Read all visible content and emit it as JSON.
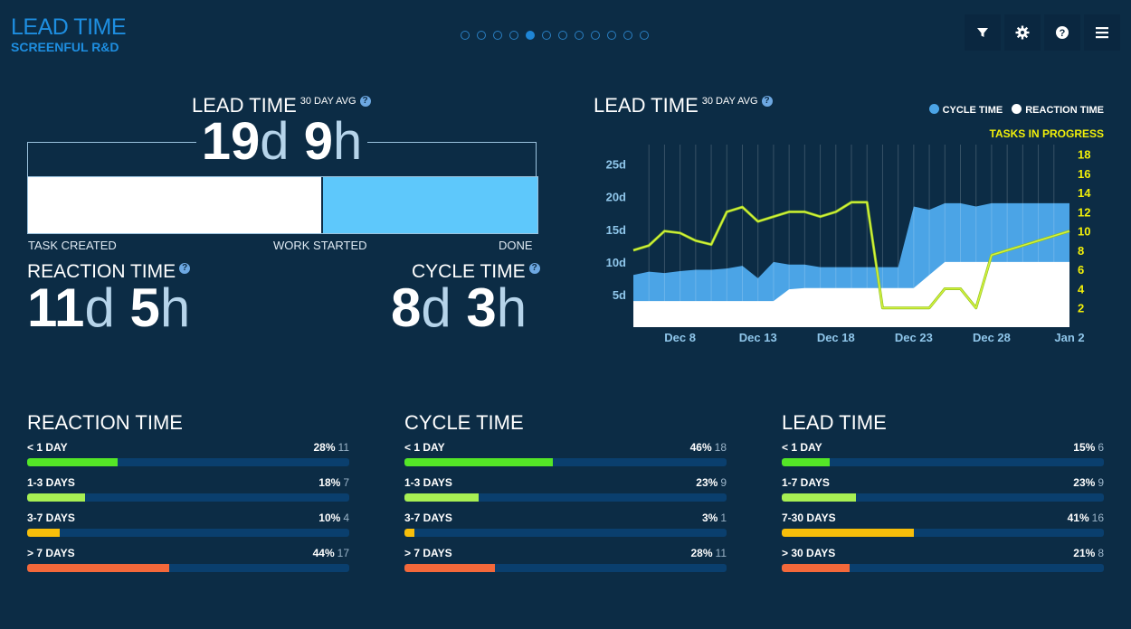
{
  "app": {
    "title": "LEAD TIME",
    "subtitle": "SCREENFUL R&D"
  },
  "pager": {
    "count": 12,
    "active_index": 4
  },
  "toolbar": {
    "icons": [
      "filter-icon",
      "gear-icon",
      "help-icon",
      "menu-icon"
    ]
  },
  "summary": {
    "title": "LEAD TIME",
    "avg_label": "30 DAY AVG",
    "lead": {
      "days": "19",
      "d": "d",
      "hours": "9",
      "h": "h"
    },
    "stage_labels": {
      "created": "TASK CREATED",
      "started": "WORK STARTED",
      "done": "DONE"
    },
    "reaction_fraction": 0.578,
    "reaction": {
      "title": "REACTION TIME",
      "days": "11",
      "d": "d",
      "hours": "5",
      "h": "h"
    },
    "cycle": {
      "title": "CYCLE TIME",
      "days": "8",
      "d": "d",
      "hours": "3",
      "h": "h"
    }
  },
  "trend": {
    "title": "LEAD TIME",
    "avg_label": "30 DAY AVG",
    "legend": {
      "cycle": "CYCLE TIME",
      "reaction": "REACTION TIME",
      "tip": "TASKS IN PROGRESS"
    },
    "colors": {
      "cycle": "#4ba4e6",
      "reaction": "#ffffff",
      "tip": "#d4f23b",
      "tip_label": "#f1ef0a"
    }
  },
  "chart_data": {
    "type": "area",
    "x": [
      "Dec 5",
      "Dec 6",
      "Dec 7",
      "Dec 8",
      "Dec 9",
      "Dec 10",
      "Dec 11",
      "Dec 12",
      "Dec 13",
      "Dec 14",
      "Dec 15",
      "Dec 16",
      "Dec 17",
      "Dec 18",
      "Dec 19",
      "Dec 20",
      "Dec 21",
      "Dec 22",
      "Dec 23",
      "Dec 24",
      "Dec 25",
      "Dec 26",
      "Dec 27",
      "Dec 28",
      "Dec 29",
      "Dec 30",
      "Dec 31",
      "Jan 1",
      "Jan 2"
    ],
    "x_tick_labels": [
      "Dec 8",
      "Dec 13",
      "Dec 18",
      "Dec 23",
      "Dec 28",
      "Jan 2"
    ],
    "y_left_ticks": [
      "5d",
      "10d",
      "15d",
      "20d",
      "25d"
    ],
    "y_left_range": [
      0,
      28
    ],
    "y_right_ticks": [
      "2",
      "4",
      "6",
      "8",
      "10",
      "12",
      "14",
      "16",
      "18"
    ],
    "y_right_range": [
      0,
      19
    ],
    "series": [
      {
        "name": "REACTION TIME",
        "values": [
          4,
          4,
          4,
          4,
          4,
          4,
          4,
          4,
          4,
          4,
          5.8,
          6,
          6,
          6,
          6,
          6,
          6,
          6,
          6,
          8,
          10,
          10,
          10,
          10,
          10,
          10,
          10,
          10,
          10
        ]
      },
      {
        "name": "CYCLE TIME",
        "values": [
          4,
          4.5,
          4.3,
          4.6,
          4.8,
          4.8,
          5,
          5.4,
          3.5,
          6,
          3.8,
          3.6,
          3.2,
          3.2,
          3.2,
          3.2,
          3.2,
          3.2,
          12.5,
          10,
          9,
          9,
          8.5,
          9,
          9,
          9,
          9,
          9,
          9
        ]
      },
      {
        "name": "TASKS IN PROGRESS",
        "axis": "right",
        "values": [
          8,
          8.5,
          10,
          9.8,
          9,
          8.6,
          12,
          12.5,
          11,
          11.5,
          12,
          12,
          11.5,
          12,
          13,
          13,
          2,
          2,
          2,
          2,
          4,
          4,
          2,
          7.5,
          8,
          8.5,
          9,
          9.5,
          10
        ]
      }
    ]
  },
  "distributions": [
    {
      "title": "REACTION TIME",
      "rows": [
        {
          "label": "< 1 DAY",
          "pct": "28%",
          "count": "11",
          "color": "#54e627"
        },
        {
          "label": "1-3 DAYS",
          "pct": "18%",
          "count": "7",
          "color": "#a7ef53"
        },
        {
          "label": "3-7 DAYS",
          "pct": "10%",
          "count": "4",
          "color": "#f7be0a"
        },
        {
          "label": "> 7 DAYS",
          "pct": "44%",
          "count": "17",
          "color": "#f3683a"
        }
      ]
    },
    {
      "title": "CYCLE TIME",
      "rows": [
        {
          "label": "< 1 DAY",
          "pct": "46%",
          "count": "18",
          "color": "#54e627"
        },
        {
          "label": "1-3 DAYS",
          "pct": "23%",
          "count": "9",
          "color": "#a7ef53"
        },
        {
          "label": "3-7 DAYS",
          "pct": "3%",
          "count": "1",
          "color": "#f7be0a"
        },
        {
          "label": "> 7 DAYS",
          "pct": "28%",
          "count": "11",
          "color": "#f3683a"
        }
      ]
    },
    {
      "title": "LEAD TIME",
      "rows": [
        {
          "label": "< 1 DAY",
          "pct": "15%",
          "count": "6",
          "color": "#54e627"
        },
        {
          "label": "1-7 DAYS",
          "pct": "23%",
          "count": "9",
          "color": "#a7ef53"
        },
        {
          "label": "7-30 DAYS",
          "pct": "41%",
          "count": "16",
          "color": "#f7be0a"
        },
        {
          "label": "> 30 DAYS",
          "pct": "21%",
          "count": "8",
          "color": "#f3683a"
        }
      ]
    }
  ]
}
